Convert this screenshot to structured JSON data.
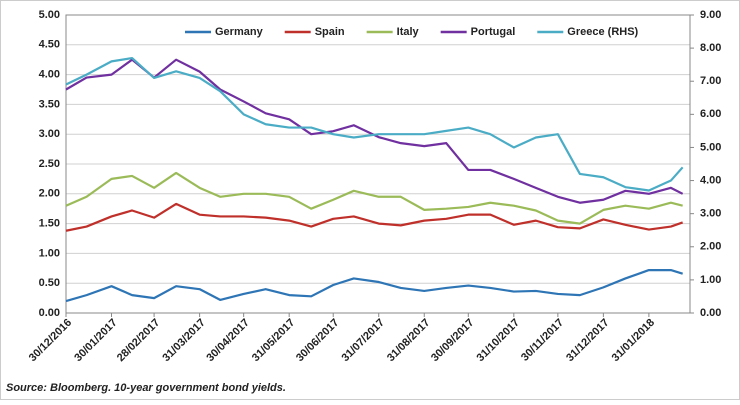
{
  "chart_data": {
    "type": "line",
    "source": "Source: Bloomberg. 10-year government bond yields.",
    "x": [
      "30/12/2016",
      "13/01/2017",
      "30/01/2017",
      "13/02/2017",
      "28/02/2017",
      "15/03/2017",
      "31/03/2017",
      "14/04/2017",
      "30/04/2017",
      "15/05/2017",
      "31/05/2017",
      "15/06/2017",
      "30/06/2017",
      "14/07/2017",
      "31/07/2017",
      "15/08/2017",
      "31/08/2017",
      "15/09/2017",
      "30/09/2017",
      "15/10/2017",
      "31/10/2017",
      "15/11/2017",
      "30/11/2017",
      "15/12/2017",
      "31/12/2017",
      "15/01/2018",
      "31/01/2018",
      "15/02/2018",
      "23/02/2018"
    ],
    "xlim": [
      "30/12/2016",
      "28/02/2018"
    ],
    "xticks": [
      "30/12/2016",
      "30/01/2017",
      "28/02/2017",
      "31/03/2017",
      "30/04/2017",
      "31/05/2017",
      "30/06/2017",
      "31/07/2017",
      "31/08/2017",
      "30/09/2017",
      "31/10/2017",
      "30/11/2017",
      "31/12/2017",
      "31/01/2018"
    ],
    "ylim": [
      0,
      5
    ],
    "yticks": [
      {
        "value": 0,
        "label": "0.00"
      },
      {
        "value": 0.5,
        "label": "0.50"
      },
      {
        "value": 1,
        "label": "1.00"
      },
      {
        "value": 1.5,
        "label": "1.50"
      },
      {
        "value": 2,
        "label": "2.00"
      },
      {
        "value": 2.5,
        "label": "2.50"
      },
      {
        "value": 3,
        "label": "3.00"
      },
      {
        "value": 3.5,
        "label": "3.50"
      },
      {
        "value": 4,
        "label": "4.00"
      },
      {
        "value": 4.5,
        "label": "4.50"
      },
      {
        "value": 5,
        "label": "5.00"
      }
    ],
    "y2lim": [
      0,
      9
    ],
    "y2ticks": [
      {
        "value": 0,
        "label": "0.00"
      },
      {
        "value": 1,
        "label": "1.00"
      },
      {
        "value": 2,
        "label": "2.00"
      },
      {
        "value": 3,
        "label": "3.00"
      },
      {
        "value": 4,
        "label": "4.00"
      },
      {
        "value": 5,
        "label": "5.00"
      },
      {
        "value": 6,
        "label": "6.00"
      },
      {
        "value": 7,
        "label": "7.00"
      },
      {
        "value": 8,
        "label": "8.00"
      },
      {
        "value": 9,
        "label": "9.00"
      }
    ],
    "grid": true,
    "legend": "top",
    "series": [
      {
        "name": "Germany",
        "color": "#2e75b6",
        "values": [
          0.2,
          0.3,
          0.45,
          0.3,
          0.25,
          0.45,
          0.4,
          0.22,
          0.32,
          0.4,
          0.3,
          0.28,
          0.47,
          0.58,
          0.52,
          0.42,
          0.37,
          0.42,
          0.46,
          0.42,
          0.36,
          0.37,
          0.32,
          0.3,
          0.43,
          0.58,
          0.72,
          0.72,
          0.66
        ]
      },
      {
        "name": "Spain",
        "color": "#c0302b",
        "values": [
          1.38,
          1.45,
          1.62,
          1.72,
          1.6,
          1.83,
          1.65,
          1.62,
          1.62,
          1.6,
          1.55,
          1.45,
          1.58,
          1.62,
          1.5,
          1.47,
          1.55,
          1.58,
          1.65,
          1.65,
          1.48,
          1.55,
          1.44,
          1.42,
          1.57,
          1.48,
          1.4,
          1.45,
          1.52
        ]
      },
      {
        "name": "Italy",
        "color": "#9bbb59",
        "values": [
          1.8,
          1.95,
          2.25,
          2.3,
          2.1,
          2.35,
          2.1,
          1.95,
          2.0,
          2.0,
          1.95,
          1.75,
          1.9,
          2.05,
          1.95,
          1.95,
          1.73,
          1.75,
          1.78,
          1.85,
          1.8,
          1.72,
          1.55,
          1.5,
          1.73,
          1.8,
          1.75,
          1.85,
          1.8
        ]
      },
      {
        "name": "Portugal",
        "color": "#7030a0",
        "values": [
          3.75,
          3.95,
          4.0,
          4.25,
          3.95,
          4.25,
          4.05,
          3.75,
          3.55,
          3.35,
          3.25,
          3.0,
          3.05,
          3.15,
          2.95,
          2.85,
          2.8,
          2.85,
          2.4,
          2.4,
          2.25,
          2.1,
          1.95,
          1.85,
          1.9,
          2.05,
          2.0,
          2.1,
          2.0
        ]
      },
      {
        "name": "Greece (RHS)",
        "color": "#4bacc6",
        "axis": "y2",
        "values": [
          6.9,
          7.2,
          7.6,
          7.7,
          7.1,
          7.3,
          7.1,
          6.7,
          6.0,
          5.7,
          5.6,
          5.6,
          5.4,
          5.3,
          5.4,
          5.4,
          5.4,
          5.5,
          5.6,
          5.4,
          5.0,
          5.3,
          5.4,
          4.2,
          4.1,
          3.8,
          3.7,
          4.0,
          4.4
        ]
      }
    ]
  }
}
